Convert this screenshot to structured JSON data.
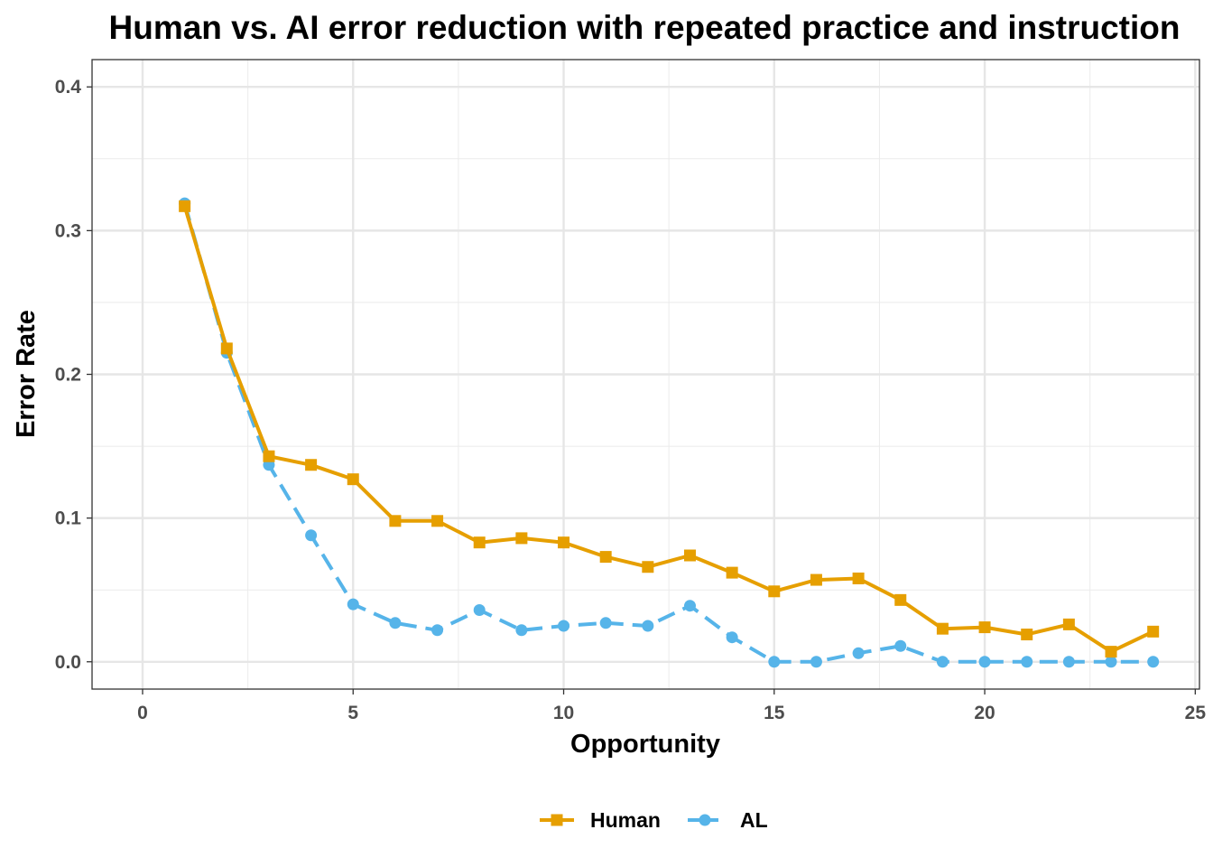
{
  "chart_data": {
    "type": "line",
    "title": "Human vs. AI error reduction with repeated practice and instruction",
    "xlabel": "Opportunity",
    "ylabel": "Error Rate",
    "xlim": [
      -1.2,
      25.1
    ],
    "ylim": [
      -0.019,
      0.419
    ],
    "x_ticks": [
      0,
      5,
      10,
      15,
      20,
      25
    ],
    "x_tick_labels": [
      "0",
      "5",
      "10",
      "15",
      "20",
      "25"
    ],
    "y_ticks": [
      0.0,
      0.1,
      0.2,
      0.3,
      0.4
    ],
    "y_tick_labels": [
      "0.0",
      "0.1",
      "0.2",
      "0.3",
      "0.4"
    ],
    "grid": true,
    "legend_position": "bottom",
    "x": [
      1,
      2,
      3,
      4,
      5,
      6,
      7,
      8,
      9,
      10,
      11,
      12,
      13,
      14,
      15,
      16,
      17,
      18,
      19,
      20,
      21,
      22,
      23,
      24
    ],
    "series": [
      {
        "name": "Human",
        "color": "#E69F00",
        "line_style": "solid",
        "marker": "square",
        "values": [
          0.317,
          0.218,
          0.143,
          0.137,
          0.127,
          0.098,
          0.098,
          0.083,
          0.086,
          0.083,
          0.073,
          0.066,
          0.074,
          0.062,
          0.049,
          0.057,
          0.058,
          0.043,
          0.023,
          0.024,
          0.019,
          0.026,
          0.007,
          0.021
        ]
      },
      {
        "name": "AL",
        "color": "#56B4E9",
        "line_style": "dashed",
        "marker": "circle",
        "values": [
          0.319,
          0.215,
          0.137,
          0.088,
          0.04,
          0.027,
          0.022,
          0.036,
          0.022,
          0.025,
          0.027,
          0.025,
          0.039,
          0.017,
          0.0,
          0.0,
          0.006,
          0.011,
          0.0,
          0.0,
          0.0,
          0.0,
          0.0,
          0.0
        ]
      }
    ]
  }
}
